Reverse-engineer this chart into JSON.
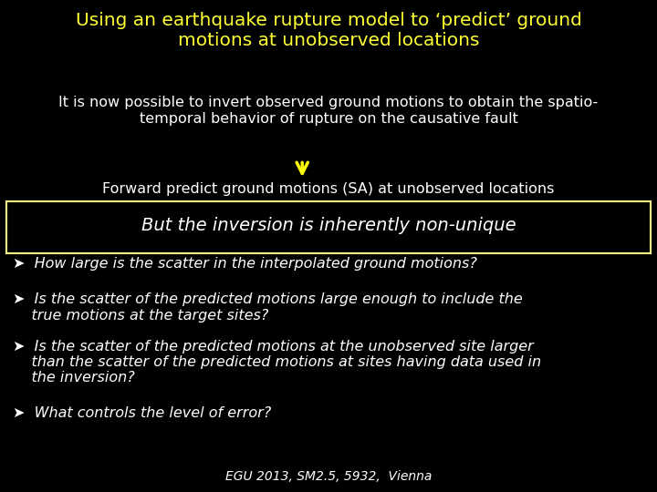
{
  "background_color": "#000000",
  "title": "Using an earthquake rupture model to ‘predict’ ground\nmotions at unobserved locations",
  "title_color": "#ffff33",
  "title_fontsize": 14.5,
  "body_text_color": "#ffffff",
  "body_fontsize": 11.5,
  "italic_fontsize": 11.5,
  "arrow_color": "#ffff00",
  "box_edge_color": "#ffff88",
  "line1": "It is now possible to invert observed ground motions to obtain the spatio-\ntemporal behavior of rupture on the causative fault",
  "line2": "Forward predict ground motions (SA) at unobserved locations",
  "box_text": "But the inversion is inherently non-unique",
  "bullet1": "➤  How large is the scatter in the interpolated ground motions?",
  "bullet2": "➤  Is the scatter of the predicted motions large enough to include the\n    true motions at the target sites?",
  "bullet3": "➤  Is the scatter of the predicted motions at the unobserved site larger\n    than the scatter of the predicted motions at sites having data used in\n    the inversion?",
  "bullet4": "➤  What controls the level of error?",
  "footer": "EGU 2013, SM2.5, 5932,  Vienna",
  "footer_color": "#ffffff",
  "footer_fontsize": 10
}
